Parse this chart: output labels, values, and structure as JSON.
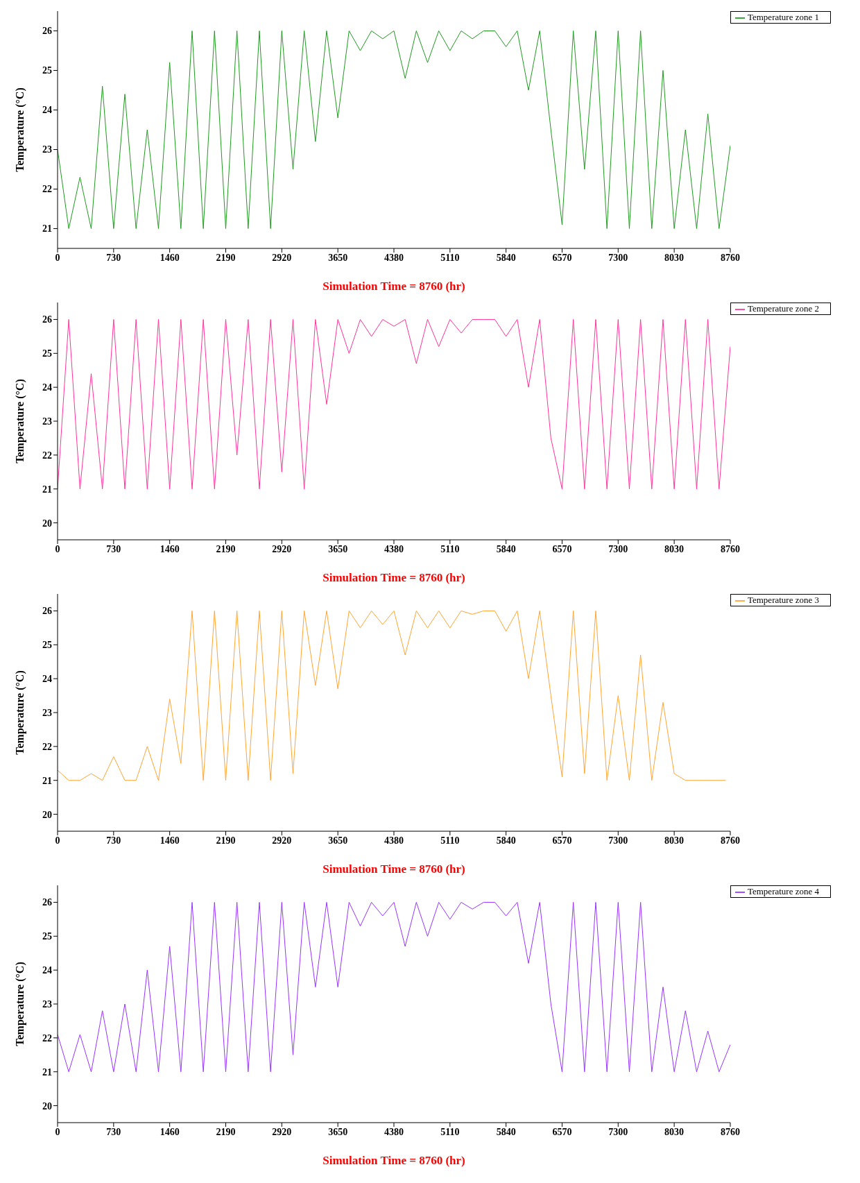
{
  "chart_data": [
    {
      "type": "line",
      "xlabel": "Simulation Time = 8760 (hr)",
      "ylabel": "Temperature (°C)",
      "legend": "top right",
      "grid": false,
      "xlim": [
        0,
        8760
      ],
      "xticks": [
        0,
        730,
        1460,
        2190,
        2920,
        3650,
        4380,
        5110,
        5840,
        6570,
        7300,
        8030,
        8760
      ],
      "ylim": [
        20.5,
        26.5
      ],
      "yticks": [
        21,
        22,
        23,
        24,
        25,
        26
      ],
      "x": [
        0,
        146,
        292,
        438,
        584,
        730,
        876,
        1022,
        1168,
        1314,
        1460,
        1606,
        1752,
        1898,
        2044,
        2190,
        2336,
        2482,
        2628,
        2774,
        2920,
        3066,
        3212,
        3358,
        3504,
        3650,
        3796,
        3942,
        4088,
        4234,
        4380,
        4526,
        4672,
        4818,
        4964,
        5110,
        5256,
        5402,
        5548,
        5694,
        5840,
        5986,
        6132,
        6278,
        6424,
        6570,
        6716,
        6862,
        7008,
        7154,
        7300,
        7446,
        7592,
        7738,
        7884,
        8030,
        8176,
        8322,
        8468,
        8614,
        8760
      ],
      "series": [
        {
          "name": "Temperature zone 1",
          "color": "#1f9a1f",
          "values": [
            23,
            21,
            22.3,
            21,
            24.6,
            21,
            24.4,
            21,
            23.5,
            21,
            25.2,
            21,
            26,
            21,
            26,
            21,
            26,
            21,
            26,
            21,
            26,
            22.5,
            26,
            23.2,
            26,
            23.8,
            26,
            25.5,
            26,
            25.8,
            26,
            24.8,
            26,
            25.2,
            26,
            25.5,
            26,
            25.8,
            26,
            26,
            25.6,
            26,
            24.5,
            26,
            23.5,
            21.1,
            26,
            22.5,
            26,
            21,
            26,
            21,
            26,
            21,
            25,
            21,
            23.5,
            21,
            23.9,
            21,
            23.1
          ]
        }
      ]
    },
    {
      "type": "line",
      "xlabel": "Simulation Time = 8760 (hr)",
      "ylabel": "Temperature (°C)",
      "legend": "top right",
      "grid": false,
      "xlim": [
        0,
        8760
      ],
      "xticks": [
        0,
        730,
        1460,
        2190,
        2920,
        3650,
        4380,
        5110,
        5840,
        6570,
        7300,
        8030,
        8760
      ],
      "ylim": [
        19.5,
        26.5
      ],
      "yticks": [
        20,
        21,
        22,
        23,
        24,
        25,
        26
      ],
      "x": [
        0,
        146,
        292,
        438,
        584,
        730,
        876,
        1022,
        1168,
        1314,
        1460,
        1606,
        1752,
        1898,
        2044,
        2190,
        2336,
        2482,
        2628,
        2774,
        2920,
        3066,
        3212,
        3358,
        3504,
        3650,
        3796,
        3942,
        4088,
        4234,
        4380,
        4526,
        4672,
        4818,
        4964,
        5110,
        5256,
        5402,
        5548,
        5694,
        5840,
        5986,
        6132,
        6278,
        6424,
        6570,
        6716,
        6862,
        7008,
        7154,
        7300,
        7446,
        7592,
        7738,
        7884,
        8030,
        8176,
        8322,
        8468,
        8614,
        8760
      ],
      "series": [
        {
          "name": "Temperature zone 2",
          "color": "#ff3399",
          "values": [
            21,
            26,
            21,
            24.4,
            21,
            26,
            21,
            26,
            21,
            26,
            21,
            26,
            21,
            26,
            21,
            26,
            22,
            26,
            21,
            26,
            21.5,
            26,
            21,
            26,
            23.5,
            26,
            25,
            26,
            25.5,
            26,
            25.8,
            26,
            24.7,
            26,
            25.2,
            26,
            25.6,
            26,
            26,
            26,
            25.5,
            26,
            24,
            26,
            22.5,
            21,
            26,
            21,
            26,
            21,
            26,
            21,
            26,
            21,
            26,
            21,
            26,
            21,
            26,
            21,
            25.2
          ]
        }
      ]
    },
    {
      "type": "line",
      "xlabel": "Simulation Time = 8760 (hr)",
      "ylabel": "Temperature (°C)",
      "legend": "top right",
      "grid": false,
      "xlim": [
        0,
        8760
      ],
      "xticks": [
        0,
        730,
        1460,
        2190,
        2920,
        3650,
        4380,
        5110,
        5840,
        6570,
        7300,
        8030,
        8760
      ],
      "ylim": [
        19.5,
        26.5
      ],
      "yticks": [
        20,
        21,
        22,
        23,
        24,
        25,
        26
      ],
      "x": [
        0,
        146,
        292,
        438,
        584,
        730,
        876,
        1022,
        1168,
        1314,
        1460,
        1606,
        1752,
        1898,
        2044,
        2190,
        2336,
        2482,
        2628,
        2774,
        2920,
        3066,
        3212,
        3358,
        3504,
        3650,
        3796,
        3942,
        4088,
        4234,
        4380,
        4526,
        4672,
        4818,
        4964,
        5110,
        5256,
        5402,
        5548,
        5694,
        5840,
        5986,
        6132,
        6278,
        6424,
        6570,
        6716,
        6862,
        7008,
        7154,
        7300,
        7446,
        7592,
        7738,
        7884,
        8030,
        8176,
        8322,
        8468,
        8614,
        8700
      ],
      "series": [
        {
          "name": "Temperature zone 3",
          "color": "#ffa533",
          "values": [
            21.3,
            21,
            21,
            21.2,
            21,
            21.7,
            21,
            21,
            22,
            21,
            23.4,
            21.5,
            26,
            21,
            26,
            21,
            26,
            21,
            26,
            21,
            26,
            21.2,
            26,
            23.8,
            26,
            23.7,
            26,
            25.5,
            26,
            25.6,
            26,
            24.7,
            26,
            25.5,
            26,
            25.5,
            26,
            25.9,
            26,
            26,
            25.4,
            26,
            24,
            26,
            23.5,
            21.1,
            26,
            21.2,
            26,
            21,
            23.5,
            21,
            24.7,
            21,
            23.3,
            21.2,
            21,
            21,
            21,
            21,
            21
          ]
        }
      ]
    },
    {
      "type": "line",
      "xlabel": "Simulation Time = 8760 (hr)",
      "ylabel": "Temperature (°C)",
      "legend": "top right",
      "grid": false,
      "xlim": [
        0,
        8760
      ],
      "xticks": [
        0,
        730,
        1460,
        2190,
        2920,
        3650,
        4380,
        5110,
        5840,
        6570,
        7300,
        8030,
        8760
      ],
      "ylim": [
        19.5,
        26.5
      ],
      "yticks": [
        20,
        21,
        22,
        23,
        24,
        25,
        26
      ],
      "x": [
        0,
        146,
        292,
        438,
        584,
        730,
        876,
        1022,
        1168,
        1314,
        1460,
        1606,
        1752,
        1898,
        2044,
        2190,
        2336,
        2482,
        2628,
        2774,
        2920,
        3066,
        3212,
        3358,
        3504,
        3650,
        3796,
        3942,
        4088,
        4234,
        4380,
        4526,
        4672,
        4818,
        4964,
        5110,
        5256,
        5402,
        5548,
        5694,
        5840,
        5986,
        6132,
        6278,
        6424,
        6570,
        6716,
        6862,
        7008,
        7154,
        7300,
        7446,
        7592,
        7738,
        7884,
        8030,
        8176,
        8322,
        8468,
        8614,
        8760
      ],
      "series": [
        {
          "name": "Temperature zone 4",
          "color": "#9933ff",
          "values": [
            22.1,
            21,
            22.1,
            21,
            22.8,
            21,
            23,
            21,
            24,
            21,
            24.7,
            21,
            26,
            21,
            26,
            21,
            26,
            21,
            26,
            21,
            26,
            21.5,
            26,
            23.5,
            26,
            23.5,
            26,
            25.3,
            26,
            25.6,
            26,
            24.7,
            26,
            25,
            26,
            25.5,
            26,
            25.8,
            26,
            26,
            25.6,
            26,
            24.2,
            26,
            23,
            21,
            26,
            21,
            26,
            21,
            26,
            21,
            26,
            21,
            23.5,
            21,
            22.8,
            21,
            22.2,
            21,
            21.8
          ]
        }
      ]
    }
  ]
}
